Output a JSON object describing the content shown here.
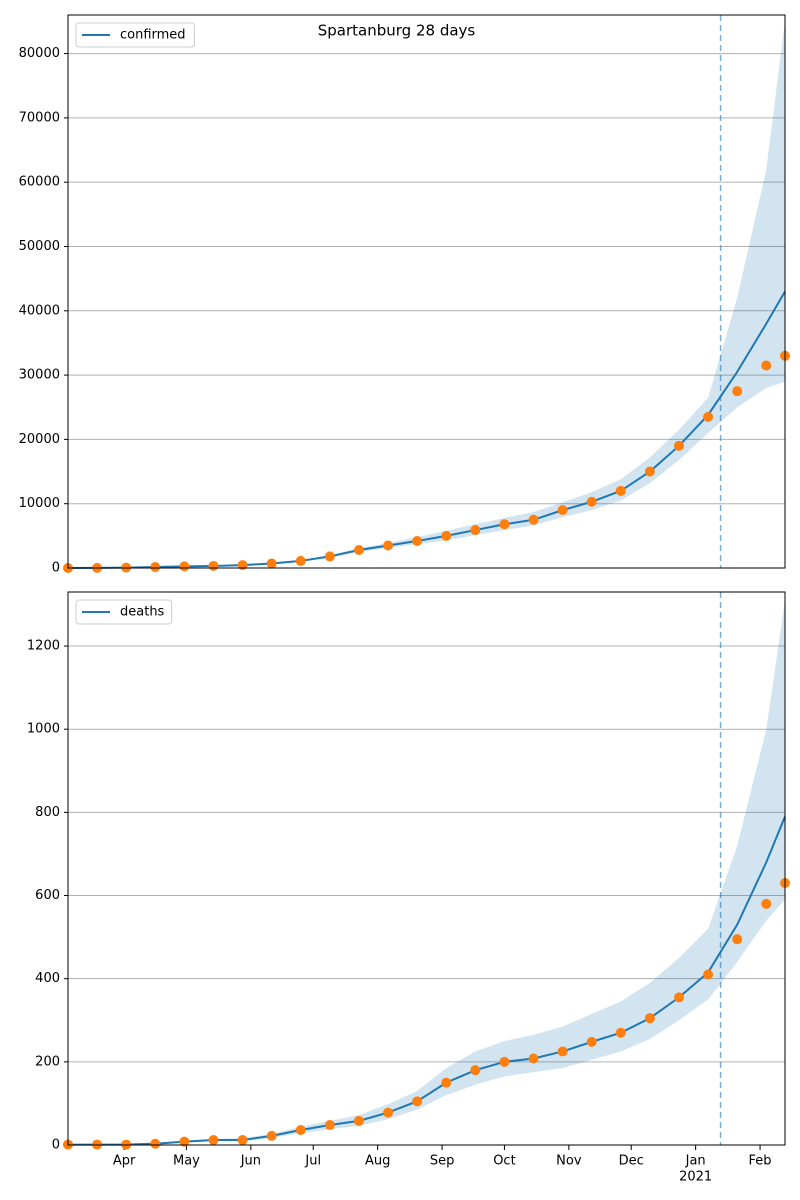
{
  "chart_data": [
    {
      "type": "line",
      "title": "Spartanburg 28 days",
      "x": [
        0,
        14,
        28,
        42,
        56,
        70,
        84,
        98,
        112,
        126,
        140,
        154,
        168,
        182,
        196,
        210,
        224,
        238,
        252,
        266,
        280,
        294,
        308,
        322,
        336,
        345
      ],
      "xlim": [
        0,
        345
      ],
      "series": [
        {
          "name": "confirmed",
          "color": "#1f77b4",
          "values": [
            0,
            10,
            60,
            150,
            250,
            320,
            450,
            700,
            1100,
            1800,
            2800,
            3500,
            4200,
            5000,
            5900,
            6800,
            7500,
            9000,
            10300,
            12000,
            15000,
            19000,
            23800,
            30500,
            38000,
            43000
          ]
        }
      ],
      "observed": {
        "color": "#ff7f0e",
        "values": [
          0,
          10,
          60,
          150,
          250,
          320,
          450,
          700,
          1100,
          1800,
          2800,
          3500,
          4200,
          5000,
          5900,
          6800,
          7500,
          9000,
          10300,
          12000,
          15000,
          19000,
          23500,
          27500,
          31500,
          33000
        ]
      },
      "band": {
        "color": "#1f77b4",
        "low": [
          0,
          8,
          50,
          130,
          220,
          280,
          400,
          620,
          950,
          1600,
          2500,
          3100,
          3700,
          4300,
          5100,
          5900,
          6600,
          7900,
          9000,
          10500,
          13200,
          16800,
          21000,
          25000,
          28000,
          29000
        ],
        "high": [
          0,
          10,
          70,
          170,
          280,
          360,
          500,
          780,
          1250,
          2000,
          3100,
          3900,
          4800,
          5800,
          6800,
          7800,
          8700,
          10200,
          11800,
          13800,
          17200,
          21500,
          26500,
          42000,
          62000,
          85000
        ]
      },
      "forecast_start": 314,
      "ylim": [
        0,
        86000
      ],
      "yticks": [
        0,
        10000,
        20000,
        30000,
        40000,
        50000,
        60000,
        70000,
        80000
      ],
      "grid": true,
      "legend": "upper left"
    },
    {
      "type": "line",
      "x": [
        0,
        14,
        28,
        42,
        56,
        70,
        84,
        98,
        112,
        126,
        140,
        154,
        168,
        182,
        196,
        210,
        224,
        238,
        252,
        266,
        280,
        294,
        308,
        322,
        336,
        345
      ],
      "xlim": [
        0,
        345
      ],
      "xticks": [
        {
          "value": 27,
          "label": "Apr"
        },
        {
          "value": 57,
          "label": "May"
        },
        {
          "value": 88,
          "label": "Jun"
        },
        {
          "value": 118,
          "label": "Jul"
        },
        {
          "value": 149,
          "label": "Aug"
        },
        {
          "value": 180,
          "label": "Sep"
        },
        {
          "value": 210,
          "label": "Oct"
        },
        {
          "value": 241,
          "label": "Nov"
        },
        {
          "value": 271,
          "label": "Dec"
        },
        {
          "value": 302,
          "label": "Jan"
        },
        {
          "value": 333,
          "label": "Feb"
        }
      ],
      "year_label": "2021",
      "series": [
        {
          "name": "deaths",
          "color": "#1f77b4",
          "values": [
            1,
            1,
            1,
            3,
            8,
            12,
            12,
            22,
            36,
            48,
            58,
            78,
            105,
            150,
            180,
            200,
            208,
            225,
            248,
            270,
            305,
            355,
            415,
            530,
            680,
            790
          ]
        }
      ],
      "observed": {
        "color": "#ff7f0e",
        "values": [
          1,
          1,
          1,
          3,
          8,
          12,
          12,
          22,
          36,
          48,
          58,
          78,
          105,
          150,
          180,
          200,
          208,
          225,
          248,
          270,
          305,
          355,
          410,
          495,
          580,
          630
        ]
      },
      "band": {
        "color": "#1f77b4",
        "low": [
          0,
          0,
          0,
          2,
          6,
          9,
          9,
          17,
          28,
          38,
          46,
          62,
          85,
          120,
          145,
          165,
          175,
          185,
          205,
          225,
          255,
          300,
          350,
          440,
          540,
          590
        ],
        "high": [
          1,
          1,
          1,
          4,
          10,
          15,
          16,
          27,
          44,
          58,
          72,
          98,
          130,
          185,
          225,
          250,
          265,
          285,
          315,
          345,
          390,
          450,
          520,
          720,
          1000,
          1310
        ]
      },
      "forecast_start": 314,
      "ylim": [
        0,
        1330
      ],
      "yticks": [
        0,
        200,
        400,
        600,
        800,
        1000,
        1200
      ],
      "grid": true,
      "legend": "upper left"
    }
  ]
}
